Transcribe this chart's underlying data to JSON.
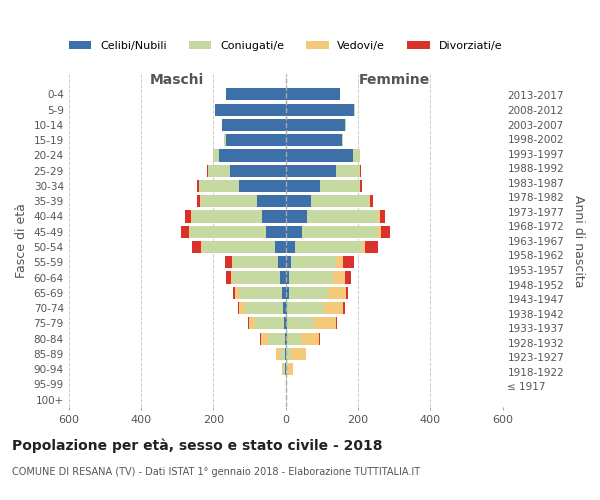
{
  "age_groups": [
    "100+",
    "95-99",
    "90-94",
    "85-89",
    "80-84",
    "75-79",
    "70-74",
    "65-69",
    "60-64",
    "55-59",
    "50-54",
    "45-49",
    "40-44",
    "35-39",
    "30-34",
    "25-29",
    "20-24",
    "15-19",
    "10-14",
    "5-9",
    "0-4"
  ],
  "birth_years": [
    "≤ 1917",
    "1918-1922",
    "1923-1927",
    "1928-1932",
    "1933-1937",
    "1938-1942",
    "1943-1947",
    "1948-1952",
    "1953-1957",
    "1958-1962",
    "1963-1967",
    "1968-1972",
    "1973-1977",
    "1978-1982",
    "1983-1987",
    "1988-1992",
    "1993-1997",
    "1998-2002",
    "2003-2007",
    "2008-2012",
    "2013-2017"
  ],
  "maschi": {
    "celibi": [
      0,
      0,
      1,
      1,
      3,
      5,
      8,
      10,
      15,
      20,
      30,
      55,
      65,
      80,
      130,
      155,
      185,
      165,
      175,
      195,
      165
    ],
    "coniugati": [
      0,
      0,
      5,
      15,
      45,
      80,
      105,
      120,
      130,
      125,
      200,
      210,
      195,
      155,
      110,
      60,
      15,
      5,
      2,
      1,
      0
    ],
    "vedovi": [
      0,
      0,
      5,
      10,
      20,
      15,
      15,
      10,
      5,
      3,
      3,
      3,
      2,
      1,
      0,
      0,
      0,
      0,
      0,
      0,
      0
    ],
    "divorziati": [
      0,
      0,
      0,
      0,
      2,
      5,
      5,
      5,
      15,
      20,
      25,
      20,
      15,
      10,
      5,
      3,
      0,
      0,
      0,
      0,
      0
    ]
  },
  "femmine": {
    "nubili": [
      0,
      0,
      1,
      1,
      3,
      3,
      5,
      8,
      10,
      15,
      25,
      45,
      60,
      70,
      95,
      140,
      185,
      155,
      165,
      190,
      150
    ],
    "coniugate": [
      0,
      2,
      5,
      15,
      40,
      75,
      100,
      110,
      120,
      125,
      185,
      210,
      195,
      160,
      110,
      65,
      20,
      5,
      2,
      1,
      0
    ],
    "vedove": [
      0,
      3,
      15,
      40,
      50,
      60,
      55,
      50,
      35,
      20,
      10,
      8,
      5,
      3,
      2,
      1,
      0,
      0,
      0,
      0,
      0
    ],
    "divorziate": [
      0,
      0,
      0,
      0,
      3,
      5,
      5,
      5,
      15,
      30,
      35,
      25,
      15,
      8,
      5,
      2,
      0,
      0,
      0,
      0,
      0
    ]
  },
  "colors": {
    "celibi": "#3d6fa8",
    "coniugati": "#c5d9a0",
    "vedovi": "#f5c97a",
    "divorziati": "#d9312b"
  },
  "xlim": 600,
  "title": "Popolazione per età, sesso e stato civile - 2018",
  "subtitle": "COMUNE DI RESANA (TV) - Dati ISTAT 1° gennaio 2018 - Elaborazione TUTTITALIA.IT",
  "ylabel_left": "Fasce di età",
  "ylabel_right": "Anni di nascita",
  "xlabel_left": "Maschi",
  "xlabel_right": "Femmine",
  "legend_labels": [
    "Celibi/Nubili",
    "Coniugati/e",
    "Vedovi/e",
    "Divorziati/e"
  ]
}
